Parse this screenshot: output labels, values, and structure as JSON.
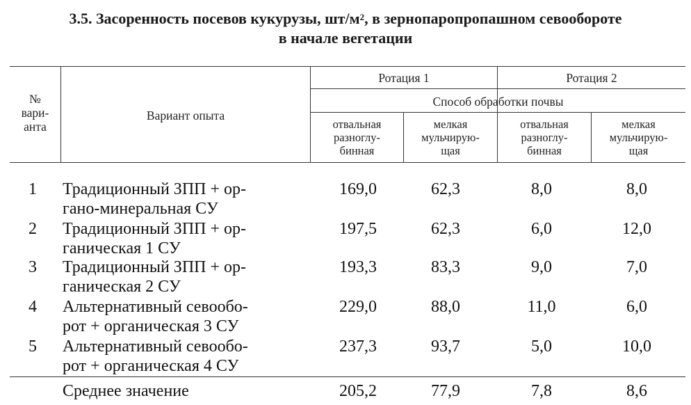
{
  "title": {
    "line1": "3.5. Засоренность посевов кукурузы, шт/м",
    "sup": "2",
    "line1_rest": ", в зернопаропропашном севообороте",
    "line2": "в начале вегетации"
  },
  "header": {
    "col_num": [
      "№",
      "вари-",
      "анта"
    ],
    "col_variant": "Вариант опыта",
    "rotation1": "Ротация 1",
    "rotation2": "Ротация 2",
    "method": "Способ обработки почвы",
    "sub": [
      [
        "отвальная",
        "разноглу-",
        "бинная"
      ],
      [
        "мелкая",
        "мульчирую-",
        "щая"
      ],
      [
        "отвальная",
        "разноглу-",
        "бинная"
      ],
      [
        "мелкая",
        "мульчирую-",
        "щая"
      ]
    ]
  },
  "rows": [
    {
      "idx": "1",
      "name1": "Традиционный ЗПП + ор-",
      "name2": "гано-минеральная СУ",
      "v": [
        "169,0",
        "62,3",
        "8,0",
        "8,0"
      ]
    },
    {
      "idx": "2",
      "name1": "Традиционный ЗПП + ор-",
      "name2": "ганическая 1 СУ",
      "v": [
        "197,5",
        "62,3",
        "6,0",
        "12,0"
      ]
    },
    {
      "idx": "3",
      "name1": "Традиционный ЗПП + ор-",
      "name2": "ганическая 2 СУ",
      "v": [
        "193,3",
        "83,3",
        "9,0",
        "7,0"
      ]
    },
    {
      "idx": "4",
      "name1": "Альтернативный севообо-",
      "name2": "рот + органическая 3 СУ",
      "v": [
        "229,0",
        "88,0",
        "11,0",
        "6,0"
      ]
    },
    {
      "idx": "5",
      "name1": "Альтернативный севообо-",
      "name2": "рот + органическая 4 СУ",
      "v": [
        "237,3",
        "93,7",
        "5,0",
        "10,0"
      ]
    }
  ],
  "average": {
    "label": "Среднее значение",
    "v": [
      "205,2",
      "77,9",
      "7,8",
      "8,6"
    ]
  }
}
